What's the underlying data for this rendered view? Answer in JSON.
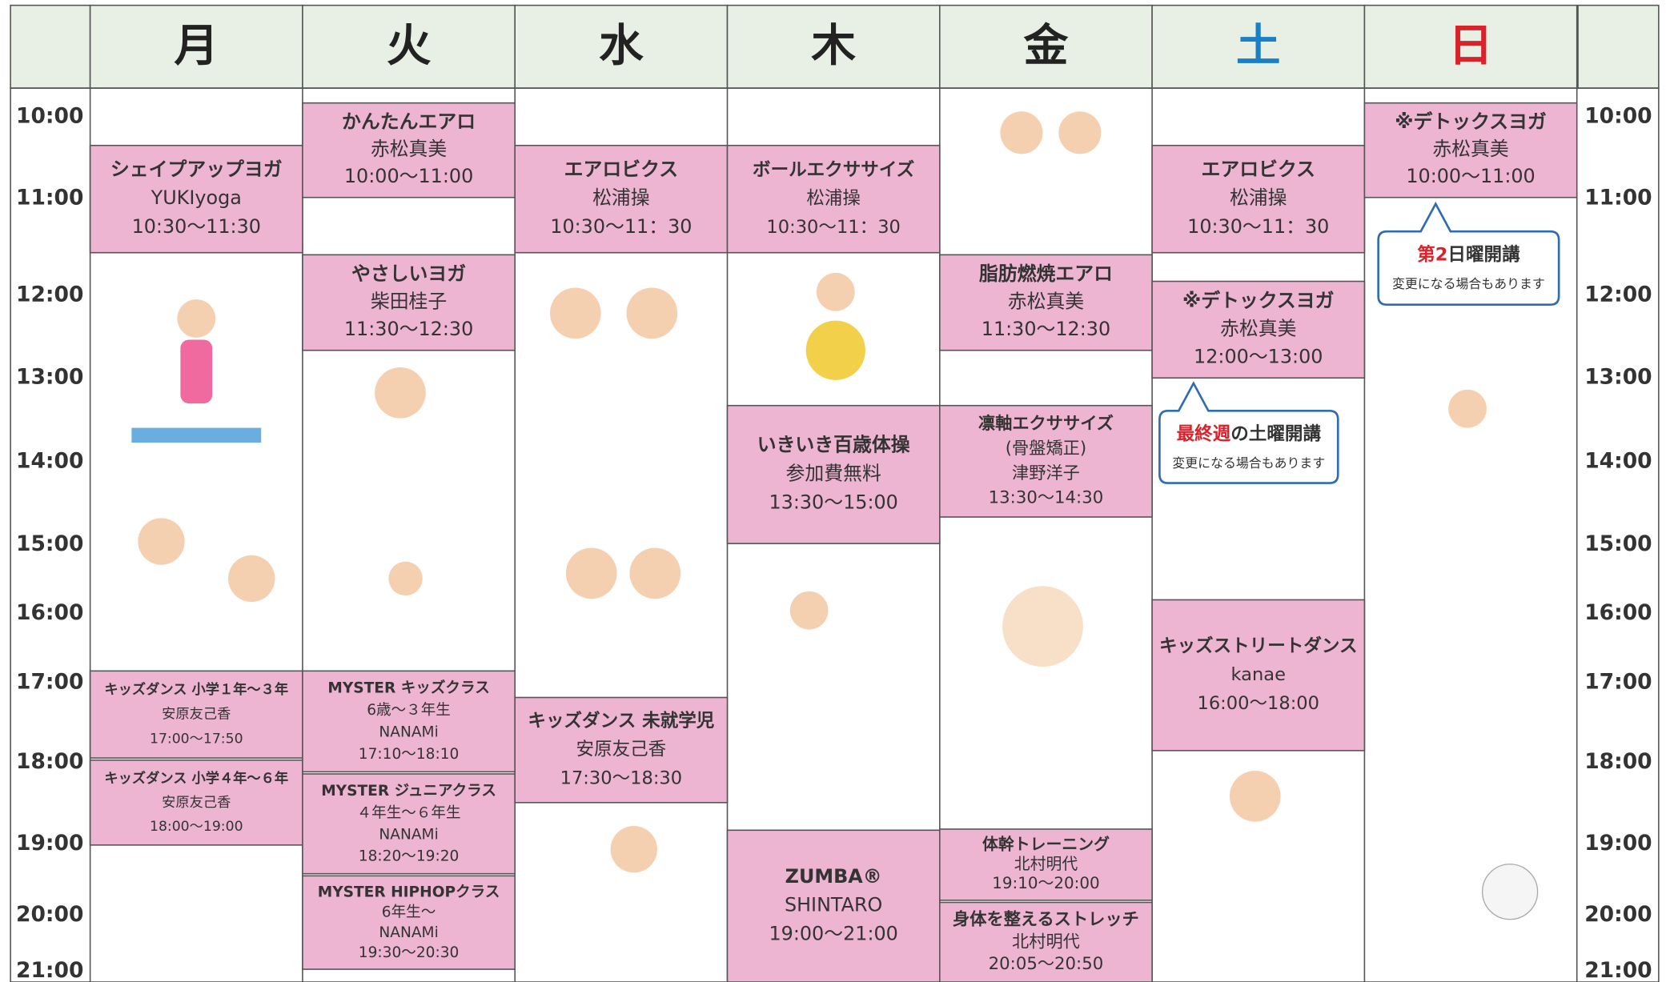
{
  "days": [
    {
      "label": "月",
      "color": "#222222"
    },
    {
      "label": "火",
      "color": "#222222"
    },
    {
      "label": "水",
      "color": "#222222"
    },
    {
      "label": "木",
      "color": "#222222"
    },
    {
      "label": "金",
      "color": "#222222"
    },
    {
      "label": "土",
      "color": "#1a7fc4"
    },
    {
      "label": "日",
      "color": "#d9232a"
    }
  ],
  "times": [
    "10:00",
    "11:00",
    "12:00",
    "13:00",
    "14:00",
    "15:00",
    "16:00",
    "17:00",
    "18:00",
    "19:00",
    "20:00",
    "21:00"
  ],
  "schedule": [
    {
      "classes": [
        {
          "lines": [
            "シェイプアップヨガ",
            "YUKIyoga",
            "10:30～11:30"
          ]
        },
        {
          "lines": [
            "キッズダンス 小学１年～３年",
            "安原友己香",
            "17:00～17:50"
          ]
        },
        {
          "lines": [
            "キッズダンス 小学４年～６年",
            "安原友己香",
            "18:00～19:00"
          ]
        }
      ]
    },
    {
      "classes": [
        {
          "lines": [
            "かんたんエアロ",
            "赤松真美",
            "10:00～11:00"
          ]
        },
        {
          "lines": [
            "やさしいヨガ",
            "柴田桂子",
            "11:30～12:30"
          ]
        },
        {
          "lines": [
            "MYSTER キッズクラス",
            "6歳～３年生",
            "NANAMi",
            "17:10～18:10"
          ]
        },
        {
          "lines": [
            "MYSTER ジュニアクラス",
            "４年生～６年生",
            "NANAMi",
            "18:20～19:20"
          ]
        },
        {
          "lines": [
            "MYSTER HIPHOPクラス",
            "6年生～",
            "NANAMi",
            "19:30～20:30"
          ]
        }
      ]
    },
    {
      "classes": [
        {
          "lines": [
            "エアロビクス",
            "松浦操",
            "10:30～11：30"
          ]
        },
        {
          "lines": [
            "キッズダンス 未就学児",
            "安原友己香",
            "17:30～18:30"
          ]
        }
      ]
    },
    {
      "classes": [
        {
          "lines": [
            "ボールエクササイズ",
            "松浦操",
            "10:30～11：30"
          ]
        },
        {
          "lines": [
            "いきいき百歳体操",
            "参加費無料",
            "13:30～15:00"
          ]
        },
        {
          "lines": [
            "ZUMBA®",
            "SHINTARO",
            "19:00～21:00"
          ]
        }
      ]
    },
    {
      "classes": [
        {
          "lines": [
            "脂肪燃焼エアロ",
            "赤松真美",
            "11:30～12:30"
          ]
        },
        {
          "lines": [
            "凛軸エクササイズ",
            "(骨盤矯正)",
            "津野洋子",
            "13:30～14:30"
          ]
        },
        {
          "lines": [
            "体幹トレーニング",
            "北村明代",
            "19:10～20:00"
          ]
        },
        {
          "lines": [
            "身体を整えるストレッチ",
            "北村明代",
            "20:05～20:50"
          ]
        }
      ]
    },
    {
      "classes": [
        {
          "lines": [
            "エアロビクス",
            "松浦操",
            "10:30～11：30"
          ]
        },
        {
          "lines": [
            "※デトックスヨガ",
            "赤松真美",
            "12:00～13:00"
          ]
        },
        {
          "lines": [
            "キッズストリートダンス",
            "kanae",
            "16:00～18:00"
          ]
        }
      ]
    },
    {
      "classes": [
        {
          "lines": [
            "※デトックスヨガ",
            "赤松真美",
            "10:00～11:00"
          ]
        }
      ]
    }
  ],
  "notes": [
    {
      "highlight": "最終週",
      "title": "の土曜開講",
      "sub": "変更になる場合もあります"
    },
    {
      "highlight": "第2",
      "title": "日曜開講",
      "sub": "変更になる場合もあります"
    }
  ]
}
